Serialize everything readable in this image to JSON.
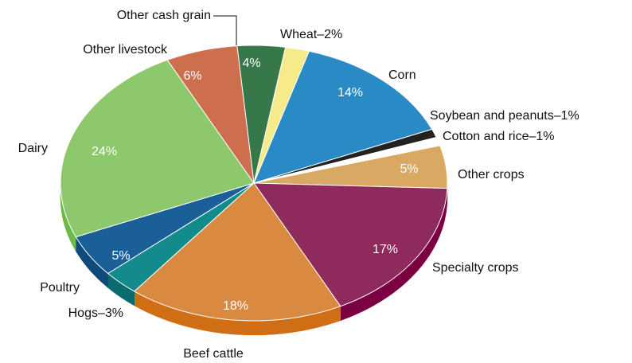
{
  "chart_data": {
    "type": "pie",
    "categories": [
      "Other cash grain",
      "Wheat–2%",
      "Corn",
      "Soybean and peanuts–1%",
      "Cotton and rice–1%",
      "Other crops",
      "Specialty crops",
      "Beef cattle",
      "Hogs–3%",
      "Poultry",
      "Dairy",
      "Other livestock"
    ],
    "values": [
      4,
      2,
      14,
      1,
      1,
      5,
      17,
      18,
      3,
      5,
      24,
      6
    ],
    "value_labels": [
      "4%",
      null,
      "14%",
      null,
      null,
      "5%",
      "17%",
      "18%",
      null,
      "5%",
      "24%",
      "6%"
    ],
    "colors": [
      "#37784a",
      "#f7ea8a",
      "#2a8ac6",
      "#222222",
      "#ffffff",
      "#d9a862",
      "#8e2a5c",
      "#da8a40",
      "#138a8c",
      "#1b5f98",
      "#8dc96c",
      "#cd6e4e"
    ],
    "side_colors": [
      "#255a34",
      "#d8c860",
      "#1a6aa0",
      "#000000",
      "#dddddd",
      "#c08a40",
      "#7a0042",
      "#d06e16",
      "#0b6c6e",
      "#0f4a7c",
      "#6cb848",
      "#a8502e"
    ]
  }
}
